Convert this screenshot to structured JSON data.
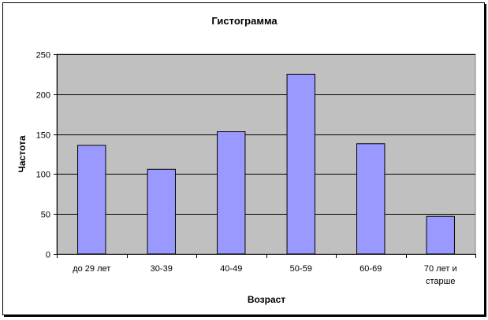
{
  "chart_data": {
    "type": "bar",
    "title": "Гистограмма",
    "xlabel": "Возраст",
    "ylabel": "Частота",
    "categories": [
      "до 29 лет",
      "30-39",
      "40-49",
      "50-59",
      "60-69",
      "70 лет и старше"
    ],
    "category_lines": [
      [
        "до 29 лет"
      ],
      [
        "30-39"
      ],
      [
        "40-49"
      ],
      [
        "50-59"
      ],
      [
        "60-69"
      ],
      [
        "70 лет и",
        "старше"
      ]
    ],
    "values": [
      136,
      106,
      153,
      225,
      138,
      47
    ],
    "ylim": [
      0,
      250
    ],
    "yticks": [
      0,
      50,
      100,
      150,
      200,
      250
    ],
    "grid": true,
    "legend": "none",
    "colors": {
      "bar": "#9999FF",
      "plot_bg": "#C0C0C0",
      "grid": "#000000"
    }
  }
}
